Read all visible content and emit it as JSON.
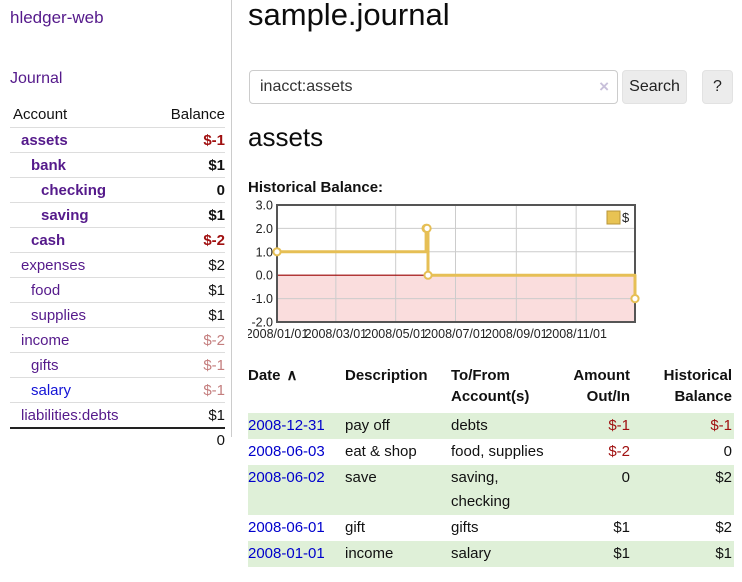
{
  "sidebar": {
    "brand": "hledger-web",
    "journal_link": "Journal",
    "accounts_header": {
      "account": "Account",
      "balance": "Balance"
    },
    "accounts": [
      {
        "name": "assets",
        "balance": "$-1"
      },
      {
        "name": "bank",
        "balance": "$1"
      },
      {
        "name": "checking",
        "balance": "0"
      },
      {
        "name": "saving",
        "balance": "$1"
      },
      {
        "name": "cash",
        "balance": "$-2"
      },
      {
        "name": "expenses",
        "balance": "$2"
      },
      {
        "name": "food",
        "balance": "$1"
      },
      {
        "name": "supplies",
        "balance": "$1"
      },
      {
        "name": "income",
        "balance": "$-2"
      },
      {
        "name": "gifts",
        "balance": "$-1"
      },
      {
        "name": "salary",
        "balance": "$-1"
      },
      {
        "name": "liabilities:debts",
        "balance": "$1"
      }
    ],
    "total": "0"
  },
  "header": {
    "title": "sample.journal",
    "search": {
      "value": "inacct:assets",
      "clear_icon": "×",
      "button_label": "Search",
      "help_label": "?"
    }
  },
  "main": {
    "account_title": "assets",
    "chart_label": "Historical Balance:"
  },
  "chart_data": {
    "type": "line",
    "title": "Historical Balance",
    "step": true,
    "legend": "$",
    "legend_position": "top-right",
    "grid": true,
    "ylim": [
      -2.0,
      3.0
    ],
    "y_ticks": [
      3.0,
      2.0,
      1.0,
      0.0,
      -1.0,
      -2.0
    ],
    "x_ticks": [
      "2008/01/01",
      "2008/03/01",
      "2008/05/01",
      "2008/07/01",
      "2008/09/01",
      "2008/11/01"
    ],
    "x_range": [
      "2008-01-01",
      "2008-12-31"
    ],
    "series": [
      {
        "name": "$",
        "points": [
          [
            "2008-01-01",
            1
          ],
          [
            "2008-06-01",
            2
          ],
          [
            "2008-06-02",
            2
          ],
          [
            "2008-06-03",
            0
          ],
          [
            "2008-12-31",
            -1
          ]
        ]
      }
    ],
    "colors": {
      "line": "#e6bf55",
      "marker_fill": "#ffffff",
      "negative_fill": "#fadddd",
      "zero_line": "#990000",
      "grid": "#cccccc",
      "border": "#555555",
      "legend_fill": "#e8c353",
      "legend_stroke": "#b8963a"
    }
  },
  "register": {
    "headers": [
      "Date",
      "Description",
      "To/From Account(s)",
      "Amount Out/In",
      "Historical Balance"
    ],
    "sort_icon": "∧",
    "rows": [
      {
        "date": "2008-12-31",
        "description": "pay off",
        "accounts": "debts",
        "amount": "$-1",
        "balance": "$-1"
      },
      {
        "date": "2008-06-03",
        "description": "eat & shop",
        "accounts": "food, supplies",
        "amount": "$-2",
        "balance": "0"
      },
      {
        "date": "2008-06-02",
        "description": "save",
        "accounts": "saving, checking",
        "amount": "0",
        "balance": "$2"
      },
      {
        "date": "2008-06-01",
        "description": "gift",
        "accounts": "gifts",
        "amount": "$1",
        "balance": "$2"
      },
      {
        "date": "2008-01-01",
        "description": "income",
        "accounts": "salary",
        "amount": "$1",
        "balance": "$1"
      }
    ]
  }
}
